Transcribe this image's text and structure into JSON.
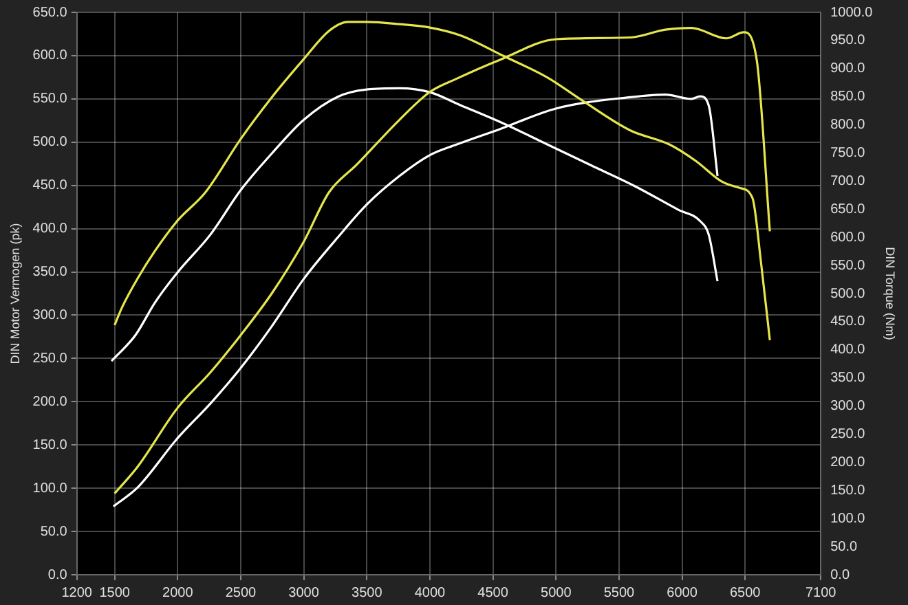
{
  "chart_data": {
    "type": "line",
    "ylabel": "DIN Motor Vermogen (pk)",
    "y2label": "DIN Torque (Nm)",
    "xlim": [
      1200,
      7100
    ],
    "xticks": [
      1200,
      1500,
      2000,
      2500,
      3000,
      3500,
      4000,
      4500,
      5000,
      5500,
      6000,
      6500,
      7100
    ],
    "ylim": [
      0,
      650
    ],
    "yticks": [
      {
        "value": 0,
        "label": "0.0"
      },
      {
        "value": 50,
        "label": "50.0"
      },
      {
        "value": 100,
        "label": "100.0"
      },
      {
        "value": 150,
        "label": "150.0"
      },
      {
        "value": 200,
        "label": "200.0"
      },
      {
        "value": 250,
        "label": "250.0"
      },
      {
        "value": 300,
        "label": "300.0"
      },
      {
        "value": 350,
        "label": "350.0"
      },
      {
        "value": 400,
        "label": "400.0"
      },
      {
        "value": 450,
        "label": "450.0"
      },
      {
        "value": 500,
        "label": "500.0"
      },
      {
        "value": 550,
        "label": "550.0"
      },
      {
        "value": 600,
        "label": "600.0"
      },
      {
        "value": 650,
        "label": "650.0"
      }
    ],
    "y2lim": [
      0,
      1000
    ],
    "y2ticks": [
      {
        "value": 0,
        "label": "0.0"
      },
      {
        "value": 50,
        "label": "50.0"
      },
      {
        "value": 100,
        "label": "100.0"
      },
      {
        "value": 150,
        "label": "150.0"
      },
      {
        "value": 200,
        "label": "200.0"
      },
      {
        "value": 250,
        "label": "250.0"
      },
      {
        "value": 300,
        "label": "300.0"
      },
      {
        "value": 350,
        "label": "350.0"
      },
      {
        "value": 400,
        "label": "400.0"
      },
      {
        "value": 450,
        "label": "450.0"
      },
      {
        "value": 500,
        "label": "500.0"
      },
      {
        "value": 550,
        "label": "550.0"
      },
      {
        "value": 600,
        "label": "600.0"
      },
      {
        "value": 650,
        "label": "650.0"
      },
      {
        "value": 700,
        "label": "700.0"
      },
      {
        "value": 750,
        "label": "750.0"
      },
      {
        "value": 800,
        "label": "800.0"
      },
      {
        "value": 850,
        "label": "850.0"
      },
      {
        "value": 900,
        "label": "900.0"
      },
      {
        "value": 950,
        "label": "950.0"
      },
      {
        "value": 1000,
        "label": "1000.0"
      }
    ],
    "grid": true,
    "marker": "none",
    "line_style": "solid",
    "series": [
      {
        "color": "#e6e64c",
        "axis": "y2",
        "x": [
          1500,
          1560,
          1680,
          1820,
          2000,
          2220,
          2500,
          2750,
          3000,
          3200,
          3350,
          3500,
          3760,
          4000,
          4242,
          4588,
          4933,
          5210,
          5590,
          5901,
          6108,
          6316,
          6455,
          6558,
          6627,
          6696
        ],
        "values": [
          444,
          476,
          526,
          576,
          630,
          680,
          775,
          850,
          917,
          967,
          983,
          983,
          979,
          973,
          959,
          922,
          884,
          843,
          790,
          765,
          736,
          699,
          688,
          670,
          553,
          417
        ]
      },
      {
        "color": "#e6e64c",
        "x": [
          1500,
          1683,
          2000,
          2260,
          2500,
          2750,
          3000,
          3200,
          3420,
          3760,
          4000,
          4207,
          4553,
          5003,
          5590,
          5867,
          6074,
          6351,
          6489,
          6592,
          6696
        ],
        "values": [
          94,
          125,
          193,
          234,
          277,
          326,
          385,
          442,
          474,
          526,
          558,
          573,
          595,
          619,
          621,
          630,
          632,
          620,
          627,
          595,
          397
        ]
      },
      {
        "color": "#ffffff",
        "axis": "y2",
        "x": [
          1475,
          1665,
          1820,
          2000,
          2260,
          2500,
          2750,
          3000,
          3270,
          3500,
          3760,
          4000,
          4242,
          4588,
          4933,
          5279,
          5625,
          5970,
          6143,
          6212,
          6281
        ],
        "values": [
          380,
          426,
          484,
          538,
          605,
          684,
          750,
          809,
          850,
          863,
          865,
          858,
          835,
          802,
          765,
          728,
          691,
          649,
          629,
          604,
          522
        ]
      },
      {
        "color": "#ffffff",
        "x": [
          1490,
          1683,
          2000,
          2260,
          2500,
          2750,
          3000,
          3270,
          3500,
          3760,
          4000,
          4207,
          4553,
          5003,
          5590,
          5867,
          6074,
          6143,
          6212,
          6281
        ],
        "values": [
          79,
          101,
          158,
          198,
          239,
          288,
          342,
          390,
          428,
          461,
          485,
          497,
          515,
          539,
          552,
          555,
          550,
          553,
          542,
          461
        ]
      }
    ]
  }
}
